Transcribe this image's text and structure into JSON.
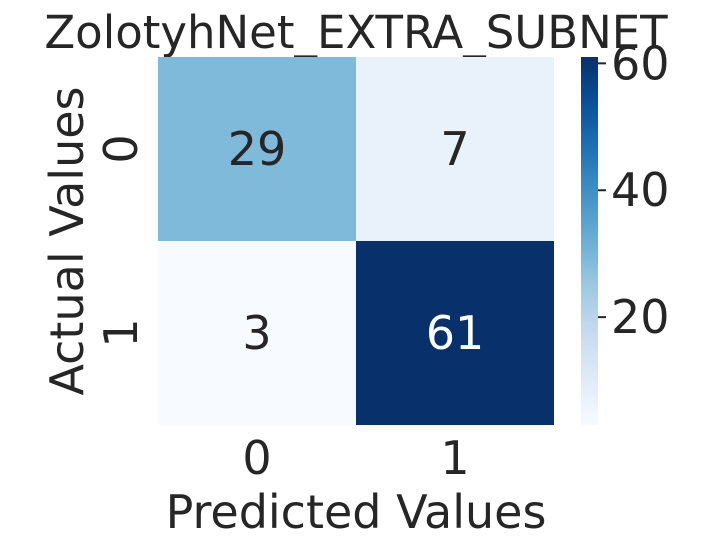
{
  "chart_data": {
    "type": "heatmap",
    "title": "ZolotyhNet_EXTRA_SUBNET",
    "xlabel": "Predicted Values",
    "ylabel": "Actual Values",
    "x_categories": [
      "0",
      "1"
    ],
    "y_categories": [
      "0",
      "1"
    ],
    "values": [
      [
        29,
        7
      ],
      [
        3,
        61
      ]
    ],
    "colorbar": {
      "min": 3,
      "max": 61,
      "ticks": [
        20,
        40,
        60
      ],
      "colormap": "Blues",
      "low_color": "#f7fbff",
      "high_color": "#08306b"
    },
    "grid": false
  }
}
